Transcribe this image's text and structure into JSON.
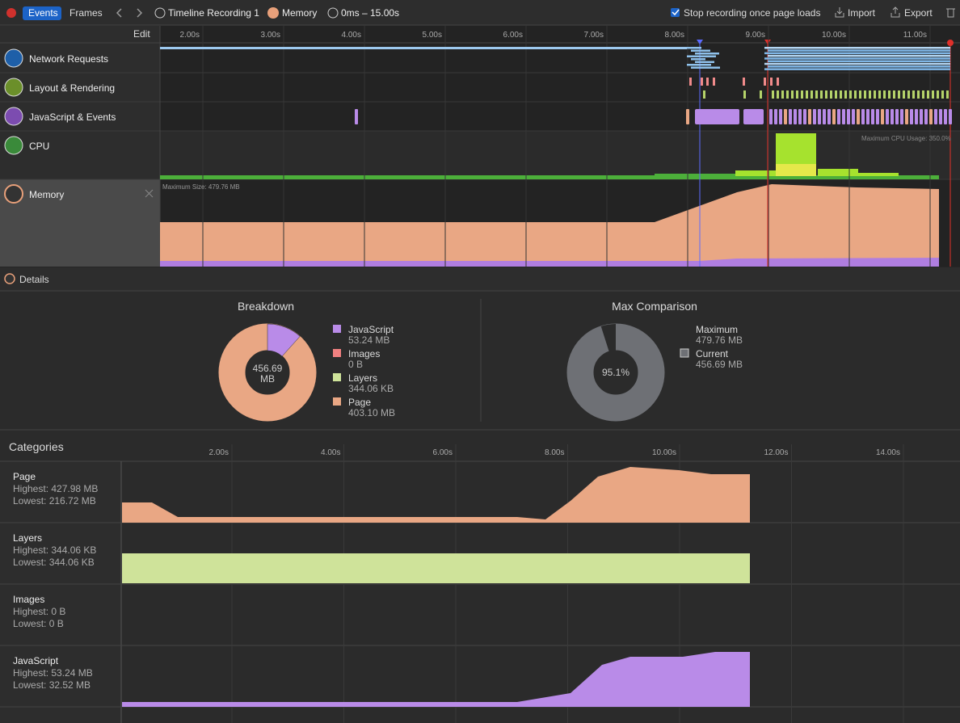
{
  "toolbar": {
    "tabs": [
      "Events",
      "Frames"
    ],
    "breadcrumbs": [
      "Timeline Recording 1",
      "Memory",
      "0ms – 15.00s"
    ],
    "checkbox": "Stop recording once page loads",
    "buttons": [
      "Import",
      "Export"
    ]
  },
  "timeline": {
    "edit": "Edit",
    "ruler": [
      "2.00s",
      "3.00s",
      "4.00s",
      "5.00s",
      "6.00s",
      "7.00s",
      "8.00s",
      "9.00s",
      "10.00s",
      "11.00s"
    ],
    "tracks": [
      "Network Requests",
      "Layout & Rendering",
      "JavaScript & Events",
      "CPU",
      "Memory"
    ],
    "cpu_label": "Maximum CPU Usage: 350.0%",
    "memory_label": "Maximum Size: 479.76 MB"
  },
  "details": {
    "title": "Details",
    "breakdown": {
      "title": "Breakdown",
      "center_value": "456.69",
      "center_unit": "MB",
      "legend": [
        {
          "name": "JavaScript",
          "value": "53.24 MB"
        },
        {
          "name": "Images",
          "value": "0 B"
        },
        {
          "name": "Layers",
          "value": "344.06 KB"
        },
        {
          "name": "Page",
          "value": "403.10 MB"
        }
      ]
    },
    "max_comparison": {
      "title": "Max Comparison",
      "center": "95.1%",
      "legend": [
        {
          "name": "Maximum",
          "value": "479.76 MB"
        },
        {
          "name": "Current",
          "value": "456.69 MB"
        }
      ]
    }
  },
  "categories": {
    "title": "Categories",
    "ruler": [
      "2.00s",
      "4.00s",
      "6.00s",
      "8.00s",
      "10.00s",
      "12.00s",
      "14.00s"
    ],
    "rows": [
      {
        "name": "Page",
        "highest": "Highest: 427.98 MB",
        "lowest": "Lowest: 216.72 MB"
      },
      {
        "name": "Layers",
        "highest": "Highest: 344.06 KB",
        "lowest": "Lowest: 344.06 KB"
      },
      {
        "name": "Images",
        "highest": "Highest: 0 B",
        "lowest": "Lowest: 0 B"
      },
      {
        "name": "JavaScript",
        "highest": "Highest: 53.24 MB",
        "lowest": "Lowest: 32.52 MB"
      }
    ]
  }
}
